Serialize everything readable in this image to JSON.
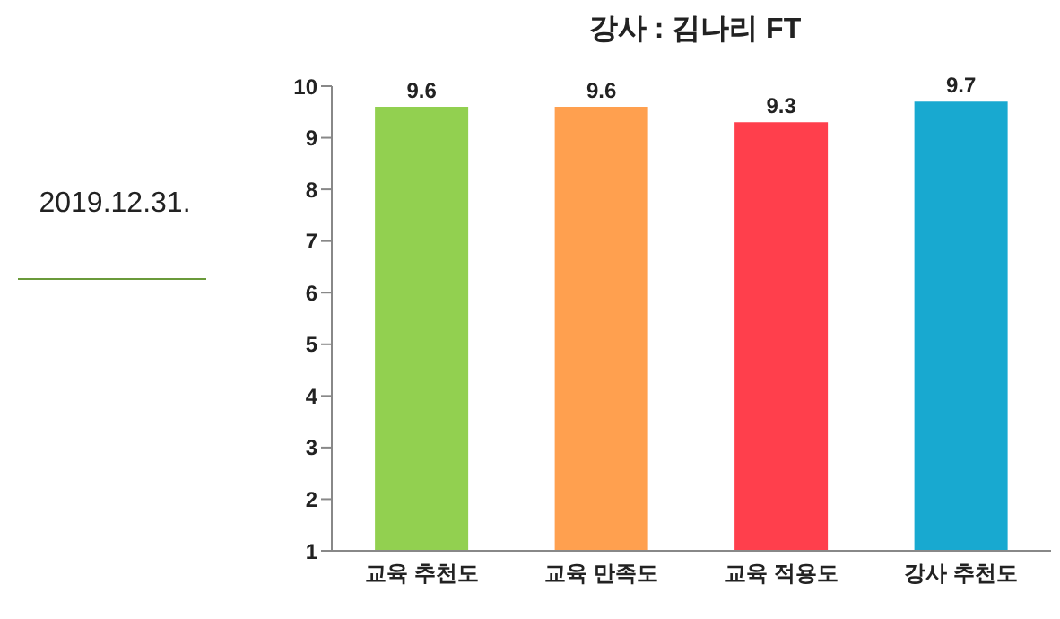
{
  "chart_data": {
    "type": "bar",
    "title": "강사 : 김나리 FT",
    "categories": [
      "교육 추천도",
      "교육 만족도",
      "교육 적용도",
      "강사 추천도"
    ],
    "values": [
      9.6,
      9.6,
      9.3,
      9.7
    ],
    "colors": [
      "#92d050",
      "#ffa04f",
      "#ff3f4c",
      "#18a9d0"
    ],
    "ylim": [
      1,
      10
    ],
    "yticks": [
      1,
      2,
      3,
      4,
      5,
      6,
      7,
      8,
      9,
      10
    ],
    "grid": false,
    "data_labels": true,
    "annotations": [
      "2019.12.31."
    ]
  }
}
